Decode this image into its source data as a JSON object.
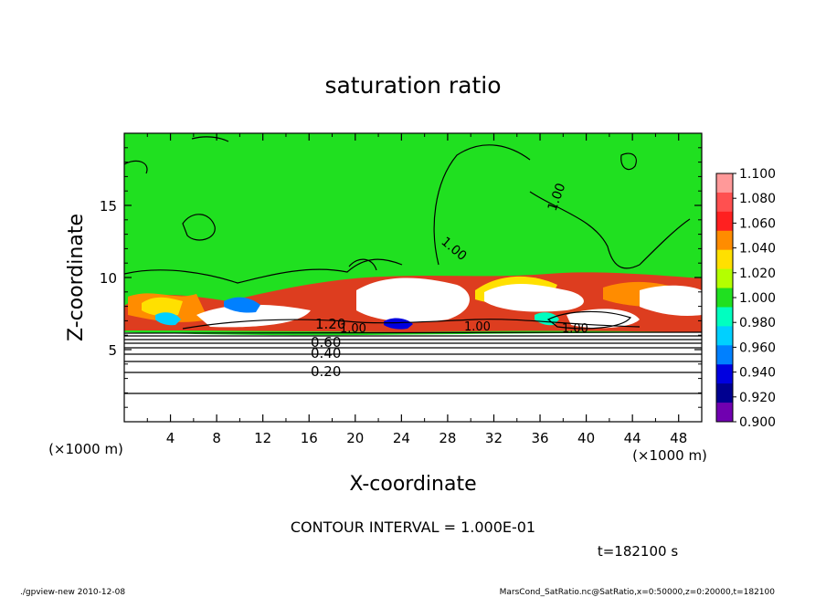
{
  "chart_data": {
    "type": "heatmap",
    "title": "saturation ratio",
    "xlabel": "X-coordinate",
    "ylabel": "Z-coordinate",
    "x_unit": "(×1000 m)",
    "y_unit": "(×1000 m)",
    "xlim": [
      0,
      50
    ],
    "ylim": [
      0,
      20
    ],
    "x_ticks": [
      4,
      8,
      12,
      16,
      20,
      24,
      28,
      32,
      36,
      40,
      44,
      48
    ],
    "y_ticks": [
      5,
      10,
      15
    ],
    "contour_interval_text": "CONTOUR INTERVAL = 1.000E-01",
    "time_text": "t=182100 s",
    "contour_labels": [
      "0.20",
      "0.40",
      "0.60",
      "1.20",
      "1.00",
      "1.00",
      "1.00",
      "1.00",
      "1.00"
    ],
    "colorbar": {
      "labels": [
        "1.100",
        "1.080",
        "1.060",
        "1.040",
        "1.020",
        "1.000",
        "0.980",
        "0.960",
        "0.940",
        "0.920",
        "0.900"
      ],
      "colors": [
        "#ff9999",
        "#ff5050",
        "#ff2020",
        "#ff8c00",
        "#ffe000",
        "#b4ff00",
        "#20e020",
        "#00ffc0",
        "#00d0ff",
        "#0080ff",
        "#0000e0",
        "#000090",
        "#7000b0"
      ]
    }
  },
  "footer": {
    "left": "./gpview-new  2010-12-08",
    "right": "MarsCond_SatRatio.nc@SatRatio,x=0:50000,z=0:20000,t=182100"
  }
}
